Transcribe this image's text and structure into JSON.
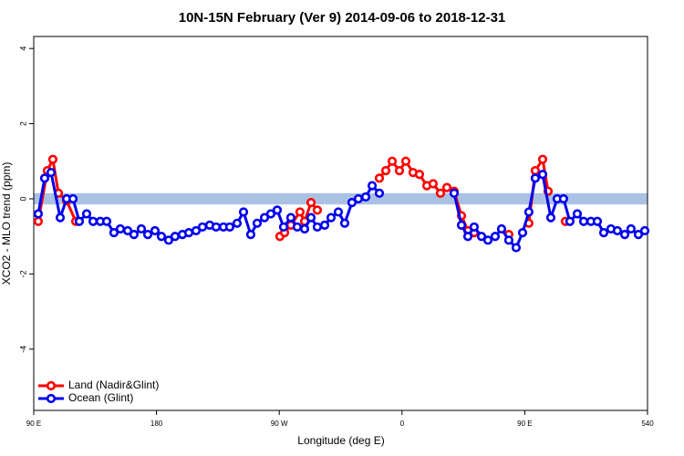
{
  "chart_data": {
    "type": "line",
    "title": "10N-15N February (Ver 9)   2014-09-06 to 2018-12-31",
    "xlabel": "Longitude (deg E)",
    "ylabel": "XCO2 - MLO trend (ppm)",
    "xlim": [
      90,
      540
    ],
    "ylim": [
      -5.63,
      4.32
    ],
    "xticks": [
      {
        "value": 90,
        "label": "90 E"
      },
      180,
      {
        "value": 270,
        "label": "90 W"
      },
      {
        "value": 360,
        "label": "0"
      },
      {
        "value": 450,
        "label": "90 E"
      },
      540
    ],
    "yticks": [
      -4,
      -2,
      0,
      2,
      4
    ],
    "legend": "bottom-left",
    "reference_band": {
      "ylim": [
        -0.15,
        0.15
      ],
      "color": "#a9c1e3"
    },
    "series": [
      {
        "name": "Land (Nadir&Glint)",
        "color": "#ff0000",
        "x": [
          93.3,
          100.0,
          104.0,
          108.1,
          114.1,
          120.8,
          null,
          270.5,
          273.9,
          278.5,
          285.2,
          288.6,
          293.3,
          297.9,
          null,
          343.4,
          348.1,
          352.8,
          358.1,
          362.8,
          368.1,
          372.8,
          378.2,
          382.8,
          388.2,
          392.9,
          398.2,
          403.6,
          408.3,
          412.9,
          null,
          438.3,
          null,
          453.0,
          457.7,
          463.1,
          467.1,
          null,
          479.8
        ],
        "values": [
          -0.6,
          0.75,
          1.05,
          0.15,
          -0.05,
          -0.6,
          null,
          -1.0,
          -0.9,
          -0.7,
          -0.35,
          -0.6,
          -0.1,
          -0.3,
          null,
          0.55,
          0.75,
          1.0,
          0.75,
          1.0,
          0.7,
          0.65,
          0.35,
          0.4,
          0.15,
          0.3,
          0.2,
          -0.45,
          -0.85,
          -0.9,
          null,
          -0.95,
          null,
          -0.65,
          0.75,
          1.05,
          0.2,
          null,
          -0.6
        ]
      },
      {
        "name": "Ocean (Glint)",
        "color": "#0000ee",
        "x": [
          93.3,
          98.0,
          102.7,
          109.4,
          114.1,
          118.8,
          123.4,
          128.8,
          133.5,
          138.8,
          143.5,
          148.8,
          153.5,
          158.9,
          163.5,
          168.9,
          173.6,
          178.9,
          183.6,
          188.9,
          193.6,
          199.0,
          203.7,
          209.0,
          213.7,
          219.0,
          223.7,
          229.1,
          233.7,
          239.1,
          243.8,
          249.1,
          253.8,
          259.2,
          263.8,
          268.5,
          273.2,
          278.5,
          283.2,
          288.6,
          293.3,
          297.9,
          303.3,
          308.0,
          313.3,
          318.0,
          323.3,
          328.0,
          333.4,
          338.1,
          343.4,
          null,
          398.2,
          403.6,
          408.3,
          412.9,
          418.3,
          423.0,
          428.3,
          433.0,
          438.3,
          443.7,
          448.4,
          453.0,
          457.7,
          463.1,
          469.1,
          473.8,
          478.4,
          483.1,
          488.5,
          493.2,
          498.5,
          503.2,
          507.9,
          513.2,
          517.9,
          523.3,
          527.9,
          533.3,
          538.0
        ],
        "values": [
          -0.4,
          0.55,
          0.7,
          -0.5,
          0,
          0,
          -0.6,
          -0.4,
          -0.6,
          -0.6,
          -0.6,
          -0.9,
          -0.8,
          -0.85,
          -0.95,
          -0.8,
          -0.95,
          -0.85,
          -1.0,
          -1.1,
          -1.0,
          -0.95,
          -0.9,
          -0.85,
          -0.75,
          -0.7,
          -0.75,
          -0.75,
          -0.75,
          -0.65,
          -0.35,
          -0.95,
          -0.65,
          -0.5,
          -0.4,
          -0.3,
          -0.75,
          -0.5,
          -0.75,
          -0.8,
          -0.5,
          -0.75,
          -0.7,
          -0.5,
          -0.35,
          -0.65,
          -0.1,
          0,
          0.05,
          0.35,
          0.15,
          null,
          0.15,
          -0.7,
          -1.0,
          -0.75,
          -1.0,
          -1.1,
          -1.0,
          -0.8,
          -1.1,
          -1.3,
          -0.9,
          -0.35,
          0.55,
          0.65,
          -0.5,
          0,
          0,
          -0.6,
          -0.4,
          -0.6,
          -0.6,
          -0.6,
          -0.9,
          -0.8,
          -0.85,
          -0.95,
          -0.8,
          -0.95,
          -0.85
        ]
      }
    ]
  }
}
